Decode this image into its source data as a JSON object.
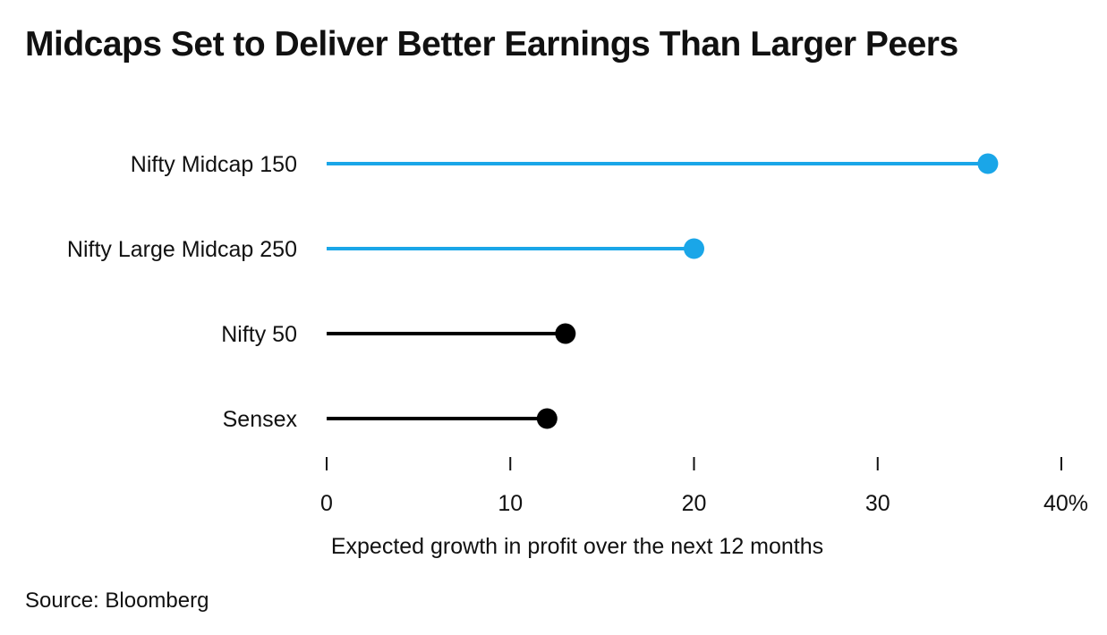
{
  "chart_data": {
    "type": "lollipop",
    "title": "Midcaps Set to Deliver Better Earnings Than Larger Peers",
    "categories": [
      "Nifty Midcap 150",
      "Nifty Large Midcap 250",
      "Nifty 50",
      "Sensex"
    ],
    "values": [
      36,
      20,
      13,
      12
    ],
    "colors": [
      "#1aa6e8",
      "#1aa6e8",
      "#000000",
      "#000000"
    ],
    "xlabel": "Expected growth in profit over the next 12 months",
    "xlim": [
      0,
      40
    ],
    "xticks": [
      0,
      10,
      20,
      30,
      40
    ],
    "xtick_labels": [
      "0",
      "10",
      "20",
      "30",
      "40%"
    ],
    "grid": false,
    "source": "Source: Bloomberg"
  }
}
